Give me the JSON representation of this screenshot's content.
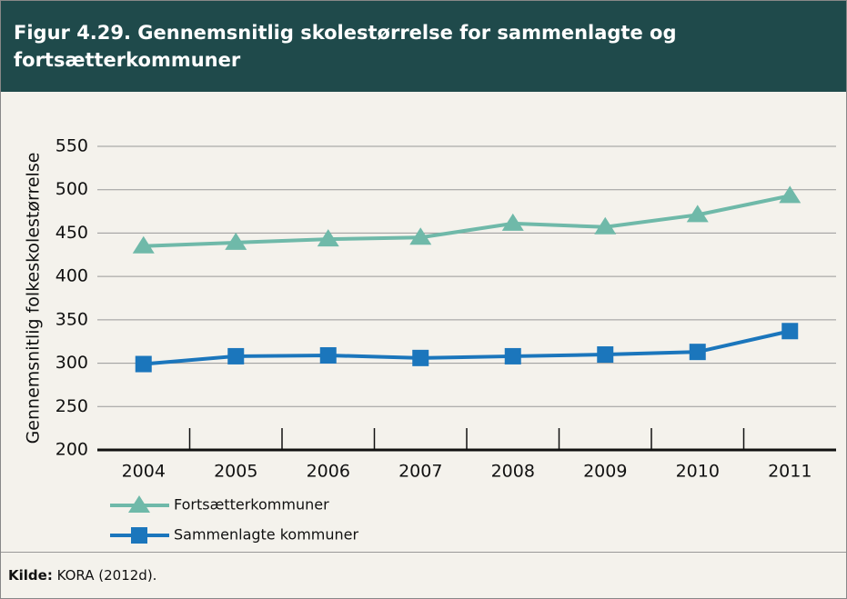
{
  "chart_data": {
    "type": "line",
    "title": "Figur 4.29. Gennemsnitlig skolestørrelse for sammenlagte og fortsætterkommuner",
    "ylabel": "Gennemsnitlig folkeskolestørrelse",
    "categories": [
      "2004",
      "2005",
      "2006",
      "2007",
      "2008",
      "2009",
      "2010",
      "2011"
    ],
    "series": [
      {
        "name": "Fortsætterkommuner",
        "color": "#6fb9a9",
        "marker": "triangle",
        "values": [
          435,
          439,
          443,
          445,
          461,
          457,
          471,
          493
        ]
      },
      {
        "name": "Sammenlagte kommuner",
        "color": "#1b76bc",
        "marker": "square",
        "values": [
          299,
          308,
          309,
          306,
          308,
          310,
          313,
          337
        ]
      }
    ],
    "ylim": [
      200,
      550
    ],
    "yticks": [
      200,
      250,
      300,
      350,
      400,
      450,
      500,
      550
    ],
    "grid": true,
    "source_label": "Kilde:",
    "source": "KORA (2012d)."
  }
}
